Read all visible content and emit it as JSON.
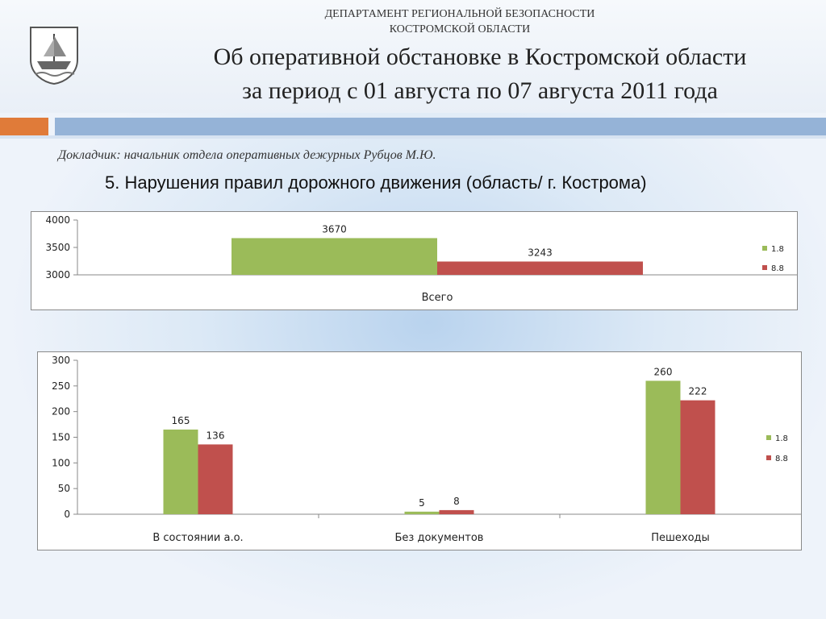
{
  "header": {
    "department_line1": "ДЕПАРТАМЕНТ РЕГИОНАЛЬНОЙ БЕЗОПАСНОСТИ",
    "department_line2": "КОСТРОМСКОЙ ОБЛАСТИ",
    "title_line1": "Об оперативной обстановке в Костромской области",
    "title_line2": "за период с 01 августа по 07 августа 2011 года",
    "emblem_icon": "kostroma-coat-of-arms-icon"
  },
  "speaker": "Докладчик: начальник отдела оперативных дежурных Рубцов М.Ю.",
  "subtitle": "5. Нарушения правил дорожного движения (область/ г. Кострома)",
  "colors": {
    "series1": "#9bbb59",
    "series2": "#c0504d",
    "accent_orange": "#e07b39",
    "accent_blue": "#95b3d7"
  },
  "chart_data": [
    {
      "type": "bar",
      "categories": [
        "Всего"
      ],
      "series": [
        {
          "name": "1.8",
          "values": [
            3670
          ]
        },
        {
          "name": "8.8",
          "values": [
            3243
          ]
        }
      ],
      "ylim": [
        3000,
        4000
      ],
      "yticks": [
        3000,
        3500,
        4000
      ],
      "legend": "right",
      "grid": false
    },
    {
      "type": "bar",
      "categories": [
        "В состоянии а.о.",
        "Без документов",
        "Пешеходы"
      ],
      "series": [
        {
          "name": "1.8",
          "values": [
            165,
            5,
            260
          ]
        },
        {
          "name": "8.8",
          "values": [
            136,
            8,
            222
          ]
        }
      ],
      "ylim": [
        0,
        300
      ],
      "yticks": [
        0,
        50,
        100,
        150,
        200,
        250,
        300
      ],
      "legend": "right",
      "grid": false
    }
  ]
}
